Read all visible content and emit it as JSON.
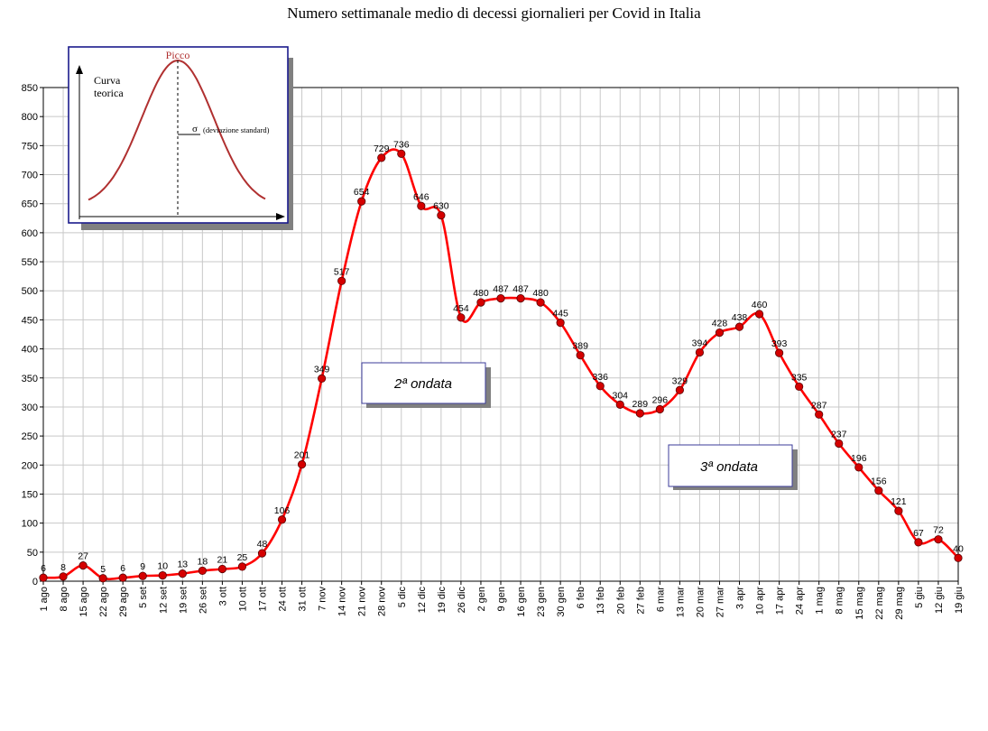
{
  "chart_data": {
    "type": "line",
    "title": "Numero settimanale medio di decessi giornalieri per Covid in Italia",
    "xlabel": "",
    "ylabel": "",
    "ylim": [
      0,
      850
    ],
    "yticks": [
      0,
      50,
      100,
      150,
      200,
      250,
      300,
      350,
      400,
      450,
      500,
      550,
      600,
      650,
      700,
      750,
      800,
      850
    ],
    "grid": true,
    "line_color": "#ff0000",
    "marker_color": "#d40000",
    "categories": [
      "1 ago",
      "8 ago",
      "15 ago",
      "22 ago",
      "29 ago",
      "5 set",
      "12 set",
      "19 set",
      "26 set",
      "3 ott",
      "10 ott",
      "17 ott",
      "24 ott",
      "31 ott",
      "7 nov",
      "14 nov",
      "21 nov",
      "28 nov",
      "5 dic",
      "12 dic",
      "19 dic",
      "26 dic",
      "2 gen",
      "9 gen",
      "16 gen",
      "23 gen",
      "30 gen",
      "6 feb",
      "13 feb",
      "20 feb",
      "27 feb",
      "6 mar",
      "13 mar",
      "20 mar",
      "27 mar",
      "3 apr",
      "10 apr",
      "17 apr",
      "24 apr",
      "1 mag",
      "8 mag",
      "15 mag",
      "22 mag",
      "29 mag",
      "5 giu",
      "12 giu",
      "19 giu"
    ],
    "values": [
      6,
      8,
      27,
      5,
      6,
      9,
      10,
      13,
      18,
      21,
      25,
      48,
      106,
      201,
      349,
      517,
      654,
      729,
      736,
      646,
      630,
      454,
      480,
      487,
      487,
      480,
      445,
      389,
      336,
      304,
      289,
      296,
      329,
      394,
      428,
      438,
      460,
      393,
      335,
      287,
      237,
      196,
      156,
      121,
      67,
      72,
      40
    ],
    "annotations": [
      {
        "text": "2ª ondata",
        "near_category": "14 nov"
      },
      {
        "text": "3ª ondata",
        "near_category": "27 mar"
      }
    ],
    "inset": {
      "peak_label": "Picco",
      "curve_label_line1": "Curva",
      "curve_label_line2": "teorica",
      "sigma_symbol": "σ",
      "sigma_label": "(deviazione standard)"
    }
  }
}
